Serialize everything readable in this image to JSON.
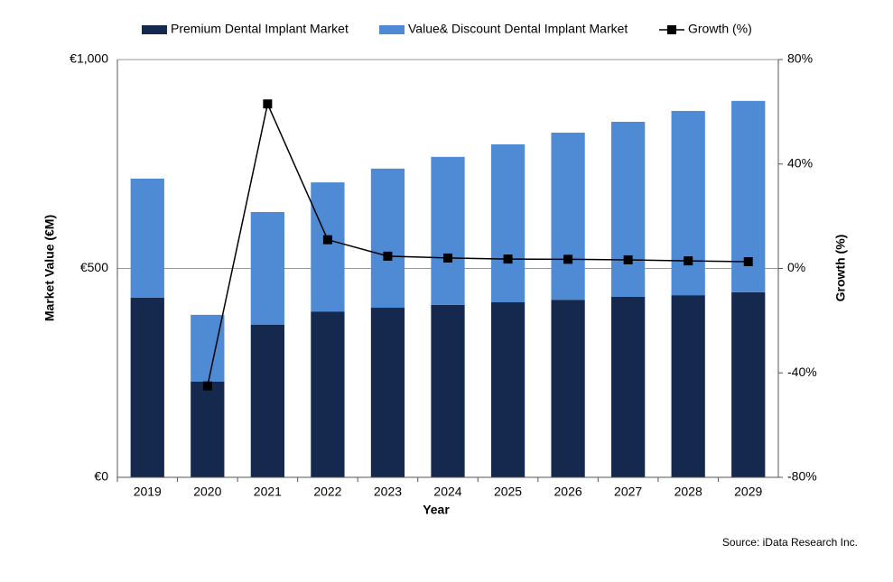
{
  "chart_data": {
    "type": "bar",
    "x_label": "Year",
    "y_label": "Market Value (€M)",
    "y2_label": "Growth (%)",
    "source": "Source: iData Research Inc.",
    "categories": [
      "2019",
      "2020",
      "2021",
      "2022",
      "2023",
      "2024",
      "2025",
      "2026",
      "2027",
      "2028",
      "2029"
    ],
    "stacked": true,
    "grid": true,
    "legend": "top",
    "series": [
      {
        "name": "Premium Dental Implant Market",
        "type": "bar",
        "color": "#14294d",
        "values": [
          430,
          229,
          365,
          397,
          406,
          413,
          419,
          425,
          432,
          436,
          443
        ]
      },
      {
        "name": "Value& Discount Dental Implant Market",
        "type": "bar",
        "color": "#4f8ad4",
        "values": [
          285,
          160,
          270,
          309,
          333,
          354,
          378,
          400,
          419,
          441,
          458
        ]
      },
      {
        "name": "Growth (%)",
        "type": "line",
        "axis": "y2",
        "color": "#000000",
        "values": [
          null,
          -45,
          63,
          11,
          4.7,
          4,
          3.6,
          3.5,
          3.3,
          2.9,
          2.6
        ]
      }
    ],
    "ylim": [
      0,
      1000
    ],
    "yticks": [
      {
        "value": 0,
        "label": "€0"
      },
      {
        "value": 500,
        "label": "€500"
      },
      {
        "value": 1000,
        "label": "€1,000"
      }
    ],
    "y2lim": [
      -80,
      80
    ],
    "y2ticks": [
      {
        "value": -80,
        "label": "-80%"
      },
      {
        "value": -40,
        "label": "-40%"
      },
      {
        "value": 0,
        "label": "0%"
      },
      {
        "value": 40,
        "label": "40%"
      },
      {
        "value": 80,
        "label": "80%"
      }
    ]
  }
}
